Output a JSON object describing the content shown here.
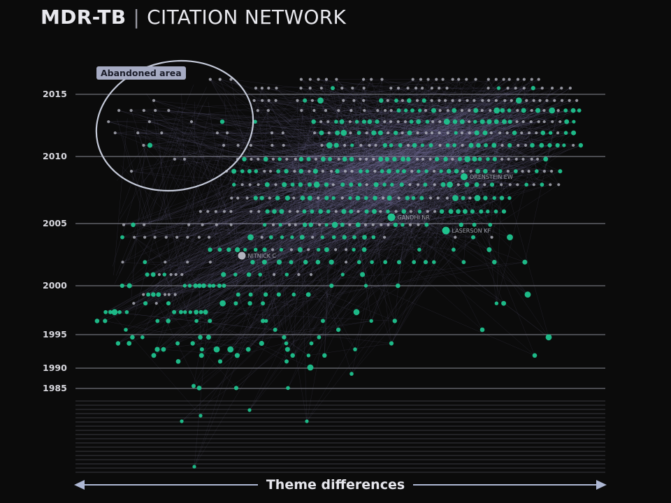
{
  "title": {
    "strong": "MDR-TB",
    "separator": "|",
    "light": "CITATION NETWORK"
  },
  "callout": {
    "label": "Abandoned area"
  },
  "axis_caption": {
    "label": "Theme differences"
  },
  "colors": {
    "background": "#0b0b0b",
    "highlight_node": "#1fc38e",
    "grey_node": "#b4b5c0",
    "edge": "#7c7aa6",
    "gridline": "#8a8b95",
    "callout_fill": "#a6abc3",
    "ellipse_stroke": "#c5cad9"
  },
  "chart_data": {
    "type": "scatter",
    "x_axis": {
      "label": "Theme differences",
      "tick_labels": []
    },
    "y_axis": {
      "label": "",
      "tick_labels": [
        "2015",
        "2010",
        "2005",
        "2000",
        "1995",
        "1990",
        "1985"
      ],
      "range": [
        1970,
        2017
      ]
    },
    "annotations": [
      {
        "text": "Abandoned area",
        "kind": "ellipse-callout"
      }
    ],
    "labeled_nodes": [
      {
        "label": "ORENSTEIN EW",
        "year": 2009,
        "color": "green"
      },
      {
        "label": "GANDHI NR",
        "year": 2006,
        "color": "green"
      },
      {
        "label": "LASERSON KF",
        "year": 2005,
        "color": "green"
      },
      {
        "label": "NITNICK C",
        "year": 2003,
        "color": "grey"
      }
    ],
    "series": [
      {
        "group": "recent-publications",
        "color": "grey"
      },
      {
        "group": "highlighted-publications",
        "color": "green"
      }
    ],
    "grid": true
  }
}
